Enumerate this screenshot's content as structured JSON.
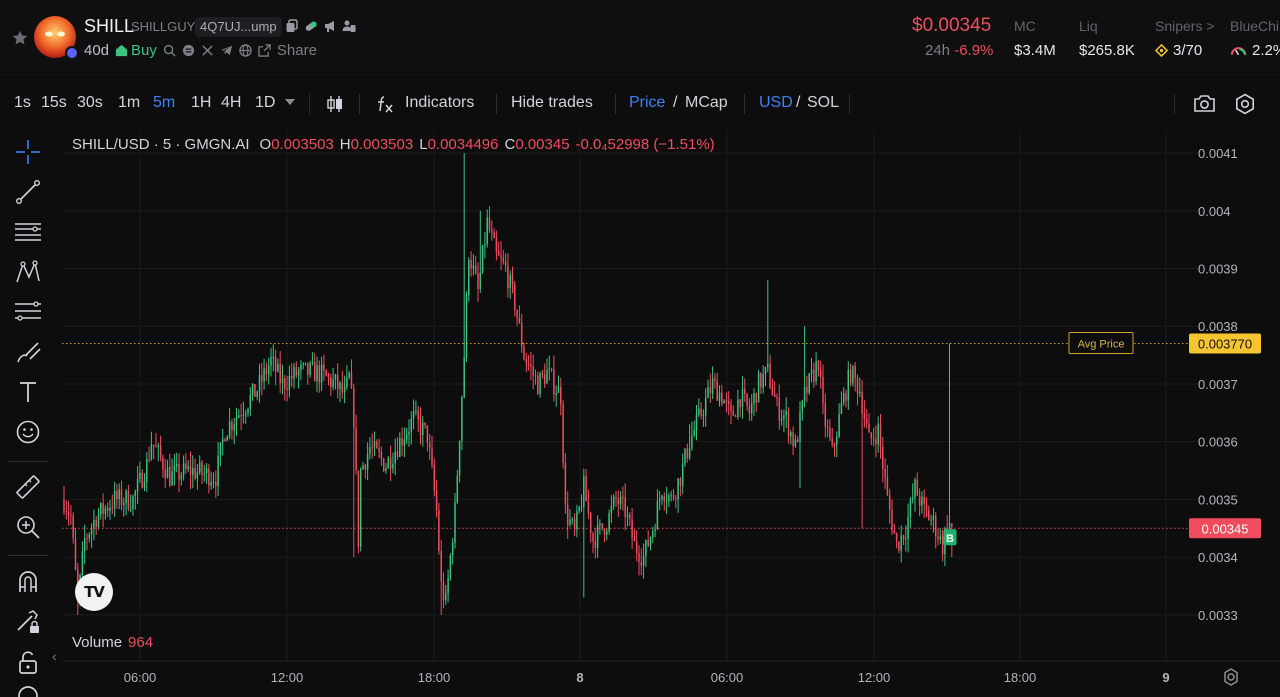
{
  "header": {
    "name": "SHILL",
    "ticker": "SHILLGUY",
    "address": "4Q7UJ...ump",
    "age": "40d",
    "buy_label": "Buy",
    "share_label": "Share",
    "price": "$0.00345",
    "change_label": "24h",
    "change_value": "-6.9%",
    "stats": [
      {
        "label": "MC",
        "value": "$3.4M"
      },
      {
        "label": "Liq",
        "value": "$265.8K"
      },
      {
        "label": "Snipers >",
        "value": "3/70"
      },
      {
        "label": "BlueChi",
        "value": "2.2%"
      }
    ],
    "colors": {
      "positive": "#3ac37f",
      "negative": "#ef4d5e",
      "accent": "#3b82f6",
      "avg": "#f5c531"
    }
  },
  "toolbar": {
    "intervals": [
      "1s",
      "15s",
      "30s",
      "1m",
      "5m",
      "1H",
      "4H",
      "1D"
    ],
    "active_interval": "5m",
    "indicators_label": "Indicators",
    "hide_trades_label": "Hide trades",
    "price_label": "Price",
    "mcap_label": "MCap",
    "usd_label": "USD",
    "sol_label": "SOL",
    "slash": "/"
  },
  "legend": {
    "symbol": "SHILL/USD · 5 · GMGN.AI",
    "o_label": "O",
    "o_value": "0.003503",
    "h_label": "H",
    "h_value": "0.003503",
    "l_label": "L",
    "l_value": "0.0034496",
    "c_label": "C",
    "c_value": "0.00345",
    "change": "-0.0₄52998 (−1.51%)"
  },
  "volume": {
    "label": "Volume",
    "value": "964"
  },
  "tv_logo": "TV",
  "chart_data": {
    "type": "candlestick",
    "y_ticks": [
      "0.0041",
      "0.004",
      "0.0039",
      "0.0038",
      "0.0037",
      "0.0036",
      "0.0035",
      "0.0034",
      "0.0033"
    ],
    "x_ticks": [
      "06:00",
      "12:00",
      "18:00",
      "8",
      "06:00",
      "12:00",
      "18:00",
      "9"
    ],
    "ylim": [
      0.00322,
      0.00414
    ],
    "avg_price_label": "Avg Price",
    "avg_price": "0.003770",
    "last_price": "0.00345",
    "trade_marker": "B",
    "keypoints": [
      [
        0,
        0.0035
      ],
      [
        3,
        0.00347
      ],
      [
        6,
        0.00332
      ],
      [
        9,
        0.00343
      ],
      [
        14,
        0.00347
      ],
      [
        22,
        0.0035
      ],
      [
        30,
        0.0035
      ],
      [
        36,
        0.00356
      ],
      [
        38,
        0.0036
      ],
      [
        42,
        0.00357
      ],
      [
        46,
        0.00354
      ],
      [
        55,
        0.00355
      ],
      [
        66,
        0.00354
      ],
      [
        70,
        0.00362
      ],
      [
        76,
        0.00365
      ],
      [
        84,
        0.00369
      ],
      [
        90,
        0.00374
      ],
      [
        95,
        0.0037
      ],
      [
        102,
        0.00372
      ],
      [
        110,
        0.00372
      ],
      [
        118,
        0.0037
      ],
      [
        122,
        0.00368
      ],
      [
        124,
        0.00371
      ],
      [
        126,
        0.00364
      ],
      [
        128,
        0.00343
      ],
      [
        129,
        0.00355
      ],
      [
        133,
        0.00359
      ],
      [
        140,
        0.00356
      ],
      [
        146,
        0.0036
      ],
      [
        152,
        0.00364
      ],
      [
        158,
        0.00361
      ],
      [
        162,
        0.00348
      ],
      [
        164,
        0.00335
      ],
      [
        166,
        0.00332
      ],
      [
        170,
        0.00348
      ],
      [
        174,
        0.00375
      ],
      [
        176,
        0.00393
      ],
      [
        180,
        0.00386
      ],
      [
        184,
        0.00398
      ],
      [
        188,
        0.00392
      ],
      [
        192,
        0.0039
      ],
      [
        196,
        0.00384
      ],
      [
        200,
        0.00375
      ],
      [
        206,
        0.0037
      ],
      [
        210,
        0.00372
      ],
      [
        216,
        0.00368
      ],
      [
        218,
        0.00348
      ],
      [
        222,
        0.00344
      ],
      [
        226,
        0.00352
      ],
      [
        230,
        0.00343
      ],
      [
        236,
        0.00346
      ],
      [
        240,
        0.0035
      ],
      [
        244,
        0.00348
      ],
      [
        248,
        0.00342
      ],
      [
        252,
        0.0034
      ],
      [
        256,
        0.00345
      ],
      [
        260,
        0.00352
      ],
      [
        264,
        0.0035
      ],
      [
        268,
        0.00354
      ],
      [
        272,
        0.0036
      ],
      [
        278,
        0.00366
      ],
      [
        282,
        0.0037
      ],
      [
        286,
        0.00368
      ],
      [
        290,
        0.00364
      ],
      [
        294,
        0.00368
      ],
      [
        298,
        0.00365
      ],
      [
        302,
        0.0037
      ],
      [
        306,
        0.00372
      ],
      [
        310,
        0.00366
      ],
      [
        314,
        0.00364
      ],
      [
        318,
        0.00359
      ],
      [
        322,
        0.00368
      ],
      [
        326,
        0.00372
      ],
      [
        328,
        0.00374
      ],
      [
        330,
        0.00365
      ],
      [
        334,
        0.00358
      ],
      [
        338,
        0.00366
      ],
      [
        342,
        0.00372
      ],
      [
        346,
        0.00369
      ],
      [
        350,
        0.0036
      ],
      [
        354,
        0.00362
      ],
      [
        358,
        0.0035
      ],
      [
        362,
        0.00342
      ],
      [
        366,
        0.00345
      ],
      [
        370,
        0.00352
      ],
      [
        374,
        0.00348
      ],
      [
        378,
        0.00346
      ],
      [
        382,
        0.00342
      ],
      [
        384,
        0.00346
      ],
      [
        386,
        0.00345
      ]
    ]
  }
}
